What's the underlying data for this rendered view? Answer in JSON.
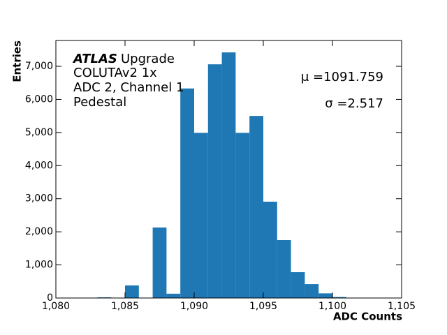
{
  "chart_data": {
    "type": "histogram",
    "xlabel": "ADC Counts",
    "ylabel": "Entries",
    "annotations": [
      "ATLAS",
      "Upgrade",
      "COLUTAv2 1x",
      "ADC 2, Channel 1",
      "Pedestal",
      "μ =1091.759",
      "σ =2.517"
    ],
    "bins": [
      1083,
      1084,
      1085,
      1086,
      1087,
      1088,
      1089,
      1090,
      1091,
      1092,
      1093,
      1094,
      1095,
      1096,
      1097,
      1098,
      1099,
      1100,
      1101
    ],
    "values": [
      20,
      0,
      380,
      0,
      2130,
      130,
      6330,
      4990,
      7060,
      7420,
      4990,
      5500,
      2910,
      1750,
      780,
      420,
      140,
      30
    ],
    "color": "#1f77b4",
    "xlim": [
      1080,
      1105
    ],
    "xticks": [
      {
        "value": 1080,
        "label": "1,080"
      },
      {
        "value": 1085,
        "label": "1,085"
      },
      {
        "value": 1090,
        "label": "1,090"
      },
      {
        "value": 1095,
        "label": "1,095"
      },
      {
        "value": 1100,
        "label": "1,100"
      },
      {
        "value": 1105,
        "label": "1,105"
      }
    ],
    "ylim": [
      0,
      7780
    ],
    "yticks": [
      0,
      {
        "value": 1000,
        "label": "1,000"
      },
      {
        "value": 2000,
        "label": "2,000"
      },
      {
        "value": 3000,
        "label": "3,000"
      },
      {
        "value": 4000,
        "label": "4,000"
      },
      {
        "value": 5000,
        "label": "5,000"
      },
      {
        "value": 6000,
        "label": "6,000"
      },
      {
        "value": 7000,
        "label": "7,000"
      }
    ],
    "grid": false
  }
}
